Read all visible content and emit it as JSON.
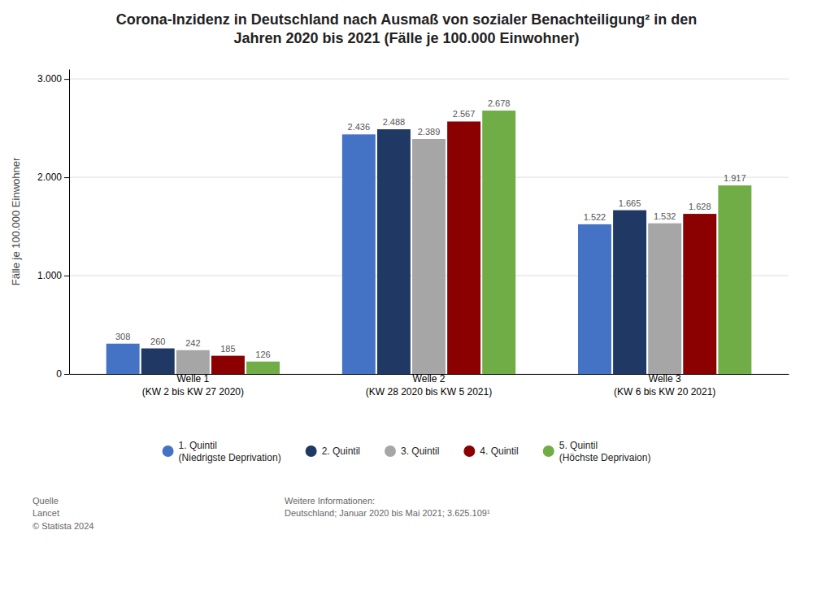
{
  "chart_data": {
    "type": "bar",
    "title": "Corona-Inzidenz in Deutschland nach Ausmaß von sozialer Benachteiligung² in den\nJahren 2020 bis 2021 (Fälle je 100.000 Einwohner)",
    "y_label": "Fälle je 100.000 Einwohner",
    "categories": [
      "Welle 1\n(KW 2 bis KW 27 2020)",
      "Welle 2\n(KW 28 2020 bis KW 5 2021)",
      "Welle 3\n(KW 6 bis KW 20 2021)"
    ],
    "series": [
      {
        "name": "1. Quintil\n(Niedrigste Deprivation)",
        "color": "#4472c4",
        "values": [
          308,
          2436,
          1522
        ],
        "value_labels": [
          "308",
          "2.436",
          "1.522"
        ]
      },
      {
        "name": "2. Quintil",
        "color": "#1f3864",
        "values": [
          260,
          2488,
          1665
        ],
        "value_labels": [
          "260",
          "2.488",
          "1.665"
        ]
      },
      {
        "name": "3. Quintil",
        "color": "#a6a6a6",
        "values": [
          242,
          2389,
          1532
        ],
        "value_labels": [
          "242",
          "2.389",
          "1.532"
        ]
      },
      {
        "name": "4. Quintil",
        "color": "#8b0000",
        "values": [
          185,
          2567,
          1628
        ],
        "value_labels": [
          "185",
          "2.567",
          "1.628"
        ]
      },
      {
        "name": "5. Quintil\n(Höchste Deprivaion)",
        "color": "#70ad47",
        "values": [
          126,
          2678,
          1917
        ],
        "value_labels": [
          "126",
          "2.678",
          "1.917"
        ]
      }
    ],
    "ylim": [
      0,
      3100
    ],
    "yticks": [
      0,
      {
        "value": 1000,
        "label": "1.000"
      },
      {
        "value": 2000,
        "label": "2.000"
      },
      {
        "value": 3000,
        "label": "3.000"
      }
    ],
    "grid": true,
    "legend": "bottom",
    "data_labels": true,
    "annotations": [
      "Quelle\nLancet\n© Statista 2024",
      "Weitere Informationen:\nDeutschland; Januar 2020 bis Mai 2021; 3.625.109¹"
    ]
  }
}
